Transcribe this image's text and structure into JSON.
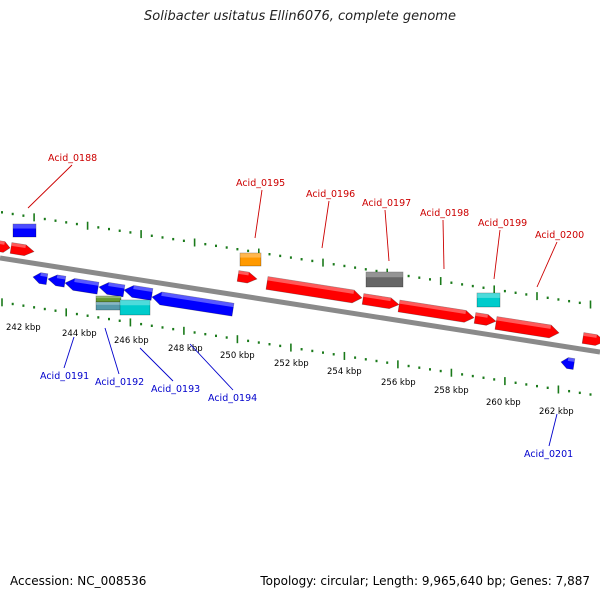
{
  "title": "Solibacter usitatus Ellin6076, complete genome",
  "footer": {
    "accession": "Accession: NC_008536",
    "summary": "Topology: circular; Length: 9,965,640 bp; Genes: 7,887"
  },
  "colors": {
    "forward_label": "#cc0000",
    "reverse_label": "#0000cc",
    "tick": "#1a7a1a",
    "backbone": "#808080",
    "red": "#ff0000",
    "blue": "#0000ff",
    "orange": "#ff9900",
    "gray": "#666666",
    "cyan": "#00cccc",
    "olive": "#669933"
  },
  "kbp_labels": [
    "242 kbp",
    "244 kbp",
    "246 kbp",
    "248 kbp",
    "250 kbp",
    "252 kbp",
    "254 kbp",
    "256 kbp",
    "258 kbp",
    "260 kbp",
    "262 kbp"
  ],
  "forward_genes": [
    {
      "label": "Acid_0188"
    },
    {
      "label": "Acid_0195"
    },
    {
      "label": "Acid_0196"
    },
    {
      "label": "Acid_0197"
    },
    {
      "label": "Acid_0198"
    },
    {
      "label": "Acid_0199"
    },
    {
      "label": "Acid_0200"
    }
  ],
  "reverse_genes": [
    {
      "label": "Acid_0191"
    },
    {
      "label": "Acid_0192"
    },
    {
      "label": "Acid_0193"
    },
    {
      "label": "Acid_0194"
    },
    {
      "label": "Acid_0201"
    }
  ]
}
